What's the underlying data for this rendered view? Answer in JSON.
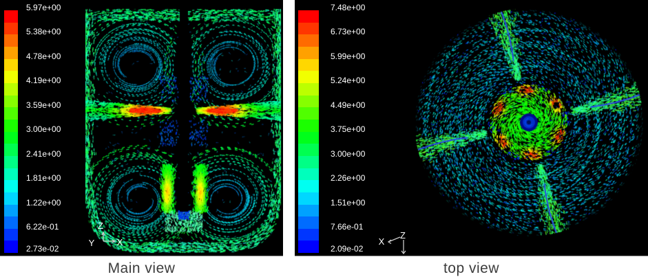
{
  "figure": {
    "background": "#ffffff",
    "panel_background": "#000000",
    "caption_color": "#3c3c3c",
    "label_color": "#ffffff",
    "panels": [
      {
        "id": "main-view",
        "caption": "Main view",
        "legend": {
          "labels": [
            "5.97e+00",
            "5.38e+00",
            "4.78e+00",
            "4.19e+00",
            "3.59e+00",
            "3.00e+00",
            "2.41e+00",
            "1.81e+00",
            "1.22e+00",
            "6.22e-01",
            "2.73e-02"
          ]
        },
        "axis_triad": {
          "labels": [
            "Z",
            "Y",
            "X"
          ]
        }
      },
      {
        "id": "top-view",
        "caption": "top view",
        "legend": {
          "labels": [
            "7.48e+00",
            "6.73e+00",
            "5.99e+00",
            "5.24e+00",
            "4.49e+00",
            "3.75e+00",
            "3.00e+00",
            "2.26e+00",
            "1.51e+00",
            "7.66e-01",
            "2.09e-02"
          ]
        },
        "axis_triad": {
          "labels": [
            "X",
            "Z"
          ]
        }
      }
    ]
  },
  "colormap": {
    "bands": [
      "#ff0000",
      "#ff3600",
      "#ff6b00",
      "#ffa100",
      "#ffd700",
      "#f1ff00",
      "#bcff00",
      "#86ff00",
      "#50ff00",
      "#1bff00",
      "#00ff1b",
      "#00ff50",
      "#00ff86",
      "#00ffbc",
      "#00fff1",
      "#00d7ff",
      "#00a1ff",
      "#006cff",
      "#0036ff",
      "#0000ff"
    ]
  },
  "chart_data": [
    {
      "type": "heatmap",
      "subtype": "velocity-vector-field",
      "title": "Main view",
      "legend_position": "left",
      "colorbar": {
        "orientation": "vertical",
        "colormap": "rainbow (red=max, blue=min)",
        "max": 5.97,
        "min": 0.0273,
        "tick_values": [
          5.97,
          5.38,
          4.78,
          4.19,
          3.59,
          3.0,
          2.41,
          1.81,
          1.22,
          0.622,
          0.0273
        ],
        "tick_labels": [
          "5.97e+00",
          "5.38e+00",
          "4.78e+00",
          "4.19e+00",
          "3.59e+00",
          "3.00e+00",
          "2.41e+00",
          "1.81e+00",
          "1.22e+00",
          "6.22e-01",
          "2.73e-02"
        ]
      },
      "axes_triad": [
        "Z",
        "Y",
        "X"
      ]
    },
    {
      "type": "heatmap",
      "subtype": "velocity-vector-field",
      "title": "top view",
      "legend_position": "left",
      "colorbar": {
        "orientation": "vertical",
        "colormap": "rainbow (red=max, blue=min)",
        "max": 7.48,
        "min": 0.0209,
        "tick_values": [
          7.48,
          6.73,
          5.99,
          5.24,
          4.49,
          3.75,
          3.0,
          2.26,
          1.51,
          0.766,
          0.0209
        ],
        "tick_labels": [
          "7.48e+00",
          "6.73e+00",
          "5.99e+00",
          "5.24e+00",
          "4.49e+00",
          "3.75e+00",
          "3.00e+00",
          "2.26e+00",
          "1.51e+00",
          "7.66e-01",
          "2.09e-02"
        ]
      },
      "axes_triad": [
        "X",
        "Z"
      ]
    }
  ]
}
